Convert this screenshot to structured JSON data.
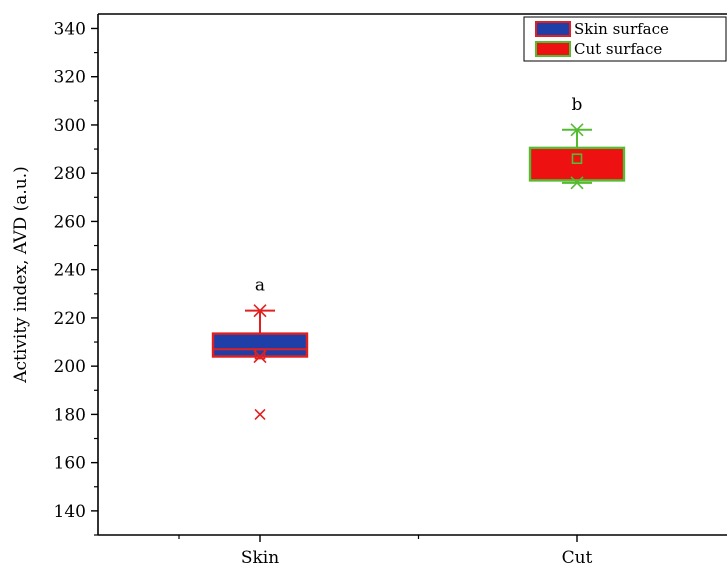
{
  "chart_data": {
    "type": "box",
    "title": "",
    "xlabel": "",
    "ylabel": "Activity index, AVD (a.u.)",
    "ylim": [
      130,
      346
    ],
    "yticks": [
      140,
      160,
      180,
      200,
      220,
      240,
      260,
      280,
      300,
      320,
      340
    ],
    "grid": false,
    "legend_position": "top-right",
    "categories": [
      "Skin",
      "Cut"
    ],
    "series": [
      {
        "name": "Skin surface",
        "category": "Skin",
        "letter": "a",
        "fill": "#1f3fa8",
        "edge": "#e02020",
        "min": 204,
        "q1": 204,
        "median": 207,
        "q3": 213.5,
        "max": 223,
        "mean": 205,
        "outliers": [
          180
        ]
      },
      {
        "name": "Cut surface",
        "category": "Cut",
        "letter": "b",
        "fill": "#ee1111",
        "edge": "#55bb33",
        "min": 276,
        "q1": 277,
        "median": 277,
        "q3": 290.5,
        "max": 298,
        "mean": 286,
        "outliers": []
      }
    ]
  }
}
